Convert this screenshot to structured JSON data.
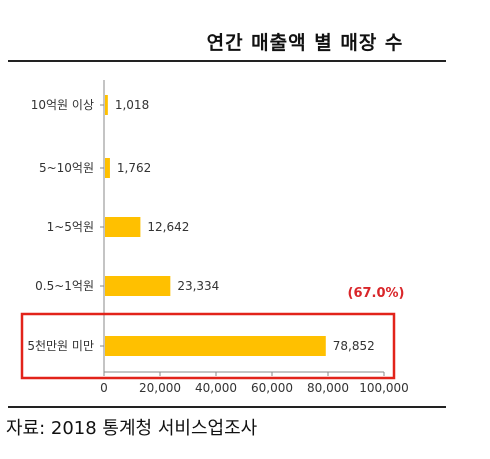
{
  "chart_data": {
    "type": "bar",
    "orientation": "horizontal",
    "title": "연간 매출액 별 매장 수",
    "categories": [
      "10억원 이상",
      "5~10억원",
      "1~5억원",
      "0.5~1억원",
      "5천만원 미만"
    ],
    "values": [
      1018,
      1762,
      12642,
      23334,
      78852
    ],
    "value_labels": [
      "1,018",
      "1,762",
      "12,642",
      "23,334",
      "78,852"
    ],
    "xlim": [
      0,
      100000
    ],
    "xticks": [
      0,
      20000,
      40000,
      60000,
      80000,
      100000
    ],
    "xtick_labels": [
      "0",
      "20,000",
      "40,000",
      "60,000",
      "80,000",
      "100,000"
    ],
    "bar_color": "#ffc000",
    "highlight": {
      "category": "5천만원 미만",
      "border_color": "#e2231a",
      "annotation": "(67.0%)"
    },
    "grid": false
  },
  "source": "자료: 2018 통계청 서비스업조사"
}
